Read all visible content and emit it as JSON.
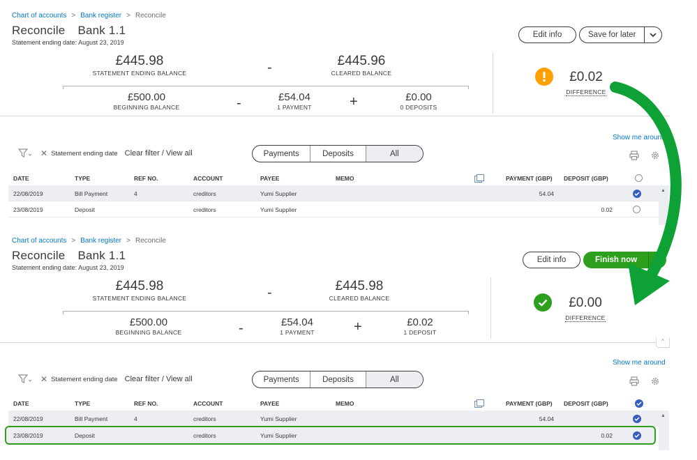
{
  "breadcrumb": {
    "items": [
      "Chart of accounts",
      "Bank register",
      "Reconcile"
    ]
  },
  "screens": [
    {
      "title": "Reconcile",
      "account": "Bank 1.1",
      "statement_date": "Statement ending date: August 23, 2019",
      "buttons": {
        "edit": "Edit info",
        "primary": "Save for later"
      },
      "statement_ending": {
        "value": "£445.98",
        "label": "STATEMENT ENDING BALANCE"
      },
      "cleared": {
        "value": "£445.96",
        "label": "CLEARED BALANCE"
      },
      "beginning": {
        "value": "£500.00",
        "label": "BEGINNING BALANCE"
      },
      "payments": {
        "value": "£54.04",
        "label": "1 PAYMENT"
      },
      "deposits": {
        "value": "£0.00",
        "label": "0 DEPOSITS"
      },
      "difference": {
        "value": "£0.02",
        "label": "DIFFERENCE",
        "status": "warning"
      },
      "rows": [
        {
          "date": "22/08/2019",
          "type": "Bill Payment",
          "ref": "4",
          "account": "creditors",
          "payee": "Yumi Supplier",
          "memo": "",
          "payment": "54.04",
          "deposit": "",
          "cleared": true
        },
        {
          "date": "23/08/2019",
          "type": "Deposit",
          "ref": "",
          "account": "creditors",
          "payee": "Yumi Supplier",
          "memo": "",
          "payment": "",
          "deposit": "0.02",
          "cleared": false
        }
      ]
    },
    {
      "title": "Reconcile",
      "account": "Bank 1.1",
      "statement_date": "Statement ending date: August 23, 2019",
      "buttons": {
        "edit": "Edit info",
        "primary": "Finish now"
      },
      "statement_ending": {
        "value": "£445.98",
        "label": "STATEMENT ENDING BALANCE"
      },
      "cleared": {
        "value": "£445.98",
        "label": "CLEARED BALANCE"
      },
      "beginning": {
        "value": "£500.00",
        "label": "BEGINNING BALANCE"
      },
      "payments": {
        "value": "£54.04",
        "label": "1 PAYMENT"
      },
      "deposits": {
        "value": "£0.02",
        "label": "1 DEPOSIT"
      },
      "difference": {
        "value": "£0.00",
        "label": "DIFFERENCE",
        "status": "ok"
      },
      "rows": [
        {
          "date": "22/08/2019",
          "type": "Bill Payment",
          "ref": "4",
          "account": "creditors",
          "payee": "Yumi Supplier",
          "memo": "",
          "payment": "54.04",
          "deposit": "",
          "cleared": true
        },
        {
          "date": "23/08/2019",
          "type": "Deposit",
          "ref": "",
          "account": "creditors",
          "payee": "Yumi Supplier",
          "memo": "",
          "payment": "",
          "deposit": "0.02",
          "cleared": true
        }
      ]
    }
  ],
  "operators": {
    "minus": "-",
    "plus": "+"
  },
  "show_me_around": "Show me around",
  "filter": {
    "chip": "Statement ending date",
    "clear": "Clear filter / View all"
  },
  "tabs": [
    "Payments",
    "Deposits",
    "All"
  ],
  "columns": [
    "DATE",
    "TYPE",
    "REF NO.",
    "ACCOUNT",
    "PAYEE",
    "MEMO",
    "PAYMENT (GBP)",
    "DEPOSIT (GBP)"
  ],
  "colors": {
    "link": "#0077c5",
    "green": "#2ca01c",
    "warning": "#ff9f00",
    "check": "#365ebf"
  },
  "icons": [
    "filter-icon",
    "close-icon",
    "print-icon",
    "gear-icon",
    "columns-icon",
    "warning-icon",
    "success-check-icon",
    "chevron-down-icon",
    "green-arrow"
  ]
}
